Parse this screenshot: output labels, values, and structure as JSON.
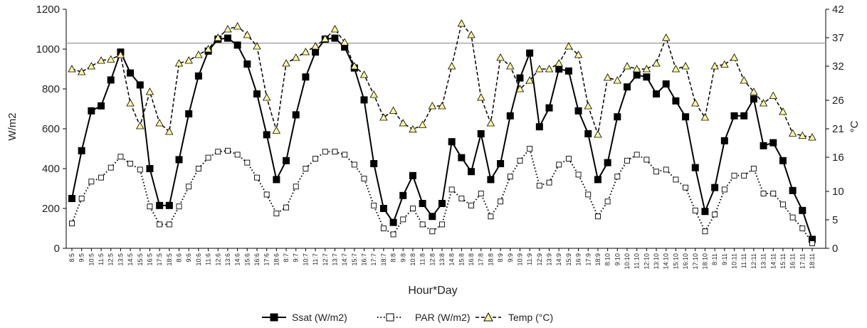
{
  "chart_data": {
    "type": "line",
    "xlabel": "Hour*Day",
    "ylabel": "W/m2",
    "y2label": "°C",
    "ylim": [
      0,
      1200
    ],
    "y2lim": [
      0,
      42
    ],
    "yticks": [
      0,
      200,
      400,
      600,
      800,
      1000,
      1200
    ],
    "y2ticks": [
      0,
      5,
      10,
      16,
      21,
      26,
      32,
      37,
      42
    ],
    "reference_line_y": 1030,
    "grid": false,
    "legend_position": "bottom",
    "categories": [
      "8:5",
      "9:5",
      "10:5",
      "11:5",
      "12:5",
      "13:5",
      "14:5",
      "15:5",
      "16:5",
      "17:5",
      "18:5",
      "8:6",
      "9:6",
      "10:6",
      "11:6",
      "12:6",
      "13:6",
      "14:6",
      "15:6",
      "16:6",
      "17:6",
      "18:6",
      "8:7",
      "9:7",
      "10:7",
      "11:7",
      "12:7",
      "13:7",
      "14:7",
      "15:7",
      "16:7",
      "17:7",
      "18:7",
      "8:8",
      "9:8",
      "10:8",
      "11:8",
      "12:8",
      "13:8",
      "14:8",
      "15:8",
      "16:8",
      "17:8",
      "18:8",
      "8:9",
      "9:9",
      "10:9",
      "11:9",
      "12:9",
      "13:9",
      "14:9",
      "15:9",
      "16:9",
      "17:9",
      "18:9",
      "8:10",
      "9:10",
      "10:10",
      "11:10",
      "12:10",
      "13:10",
      "14:10",
      "15:10",
      "16:10",
      "17:10",
      "18:10",
      "8:11",
      "9:11",
      "10:11",
      "11:11",
      "12:11",
      "13:11",
      "14:11",
      "15:11",
      "16:11",
      "17:11",
      "18:11"
    ],
    "series": [
      {
        "name": "Ssat (W/m2)",
        "axis": "left",
        "style": "solid-filled-square",
        "color": "#000000",
        "values": [
          250,
          490,
          690,
          715,
          845,
          985,
          880,
          820,
          400,
          215,
          215,
          445,
          675,
          865,
          990,
          1050,
          1055,
          1020,
          925,
          775,
          570,
          345,
          440,
          670,
          860,
          985,
          1050,
          1055,
          1010,
          905,
          745,
          425,
          200,
          130,
          265,
          365,
          225,
          160,
          225,
          535,
          455,
          385,
          575,
          345,
          425,
          665,
          855,
          980,
          610,
          705,
          900,
          890,
          690,
          575,
          345,
          430,
          660,
          810,
          870,
          860,
          775,
          825,
          740,
          660,
          405,
          185,
          305,
          540,
          665,
          665,
          750,
          515,
          530,
          440,
          290,
          190,
          45
        ]
      },
      {
        "name": "PAR (W/m2)",
        "axis": "left",
        "style": "dotted-open-square",
        "color": "#000000",
        "values": [
          125,
          250,
          335,
          355,
          405,
          460,
          425,
          395,
          210,
          120,
          120,
          210,
          310,
          400,
          455,
          485,
          490,
          470,
          430,
          355,
          270,
          175,
          205,
          310,
          400,
          450,
          485,
          485,
          470,
          420,
          350,
          215,
          100,
          70,
          145,
          200,
          120,
          85,
          120,
          295,
          250,
          215,
          275,
          160,
          235,
          360,
          440,
          500,
          315,
          330,
          420,
          450,
          370,
          270,
          160,
          235,
          360,
          440,
          470,
          445,
          385,
          395,
          345,
          305,
          190,
          85,
          170,
          295,
          365,
          365,
          400,
          275,
          275,
          220,
          155,
          100,
          25
        ]
      },
      {
        "name": "Temp (°C)",
        "axis": "right",
        "style": "dashed-yellow-triangle",
        "color": "#ffff99",
        "values": [
          31.5,
          31,
          32,
          33,
          33.2,
          34,
          25.5,
          21.5,
          27.5,
          22,
          20.5,
          32.5,
          33,
          34,
          35,
          37,
          38.5,
          39,
          37.5,
          35.5,
          26.5,
          20.7,
          32.5,
          33.5,
          34.5,
          35.5,
          36.8,
          38.5,
          36.2,
          32,
          30.5,
          27,
          23,
          24.2,
          22,
          20.9,
          21.7,
          25,
          25,
          32,
          39.5,
          37.5,
          26.5,
          22,
          33.5,
          32,
          28,
          29.5,
          31.5,
          31.5,
          32.5,
          35.5,
          34,
          25,
          20,
          30,
          29.5,
          32,
          31.5,
          31.5,
          32.5,
          37,
          31.5,
          32,
          25.5,
          23,
          32,
          32.3,
          33.5,
          29.5,
          27.5,
          25.5,
          26.8,
          24,
          20.2,
          19.8,
          19.5
        ]
      }
    ]
  }
}
